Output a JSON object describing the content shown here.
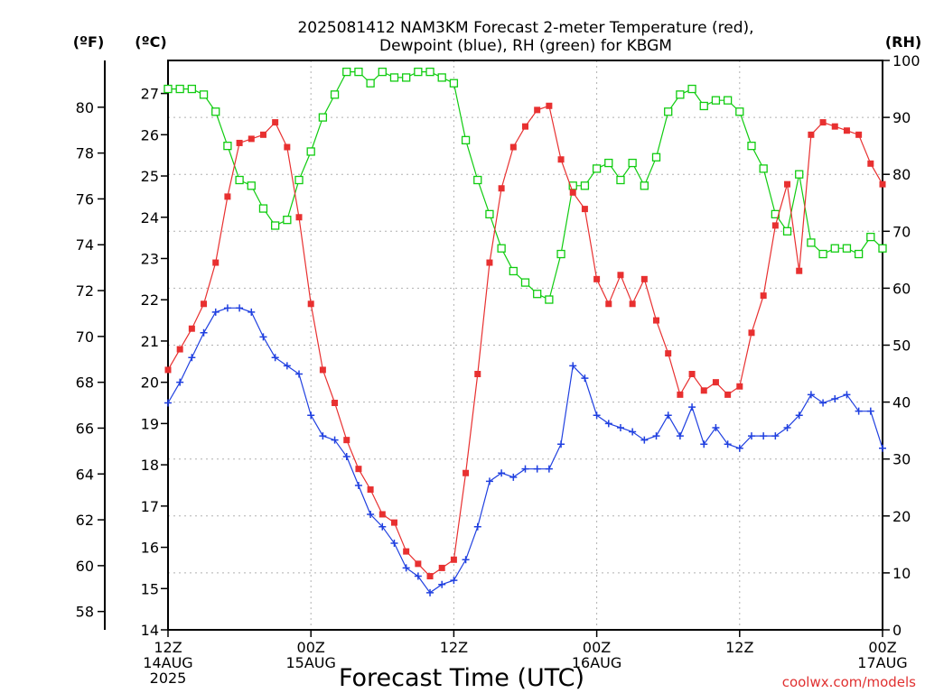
{
  "title_line1": "2025081412 NAM3KM Forecast 2-meter Temperature (red),",
  "title_line2": "Dewpoint (blue), RH (green) for KBGM",
  "unit_f": "(ºF)",
  "unit_c": "(ºC)",
  "unit_rh": "(RH)",
  "xlabel": "Forecast Time (UTC)",
  "credit": "coolwx.com/models",
  "colors": {
    "temperature": "#e83030",
    "dewpoint": "#2040e0",
    "rh": "#10cc10",
    "grid": "#b0b0b0",
    "credit": "#e03030"
  },
  "chart_data": {
    "type": "line",
    "title": "2025081412 NAM3KM Forecast 2-meter Temperature (red), Dewpoint (blue), RH (green) for KBGM",
    "xlabel": "Forecast Time (UTC)",
    "xlim_hours": [
      0,
      60
    ],
    "x_ticks": [
      {
        "hour": 0,
        "lines": [
          "12Z",
          "14AUG",
          "2025"
        ]
      },
      {
        "hour": 12,
        "lines": [
          "00Z",
          "15AUG"
        ]
      },
      {
        "hour": 24,
        "lines": [
          "12Z"
        ]
      },
      {
        "hour": 36,
        "lines": [
          "00Z",
          "16AUG"
        ]
      },
      {
        "hour": 48,
        "lines": [
          "12Z"
        ]
      },
      {
        "hour": 60,
        "lines": [
          "00Z",
          "17AUG"
        ]
      }
    ],
    "y_left_celsius": {
      "label": "(ºC)",
      "range": [
        14,
        27.8
      ],
      "ticks": [
        14,
        15,
        16,
        17,
        18,
        19,
        20,
        21,
        22,
        23,
        24,
        25,
        26,
        27
      ]
    },
    "y_left_fahrenheit": {
      "label": "(ºF)",
      "ticks": [
        58,
        60,
        62,
        64,
        66,
        68,
        70,
        72,
        74,
        76,
        78,
        80
      ]
    },
    "y_right_rh": {
      "label": "(RH)",
      "range": [
        0,
        100
      ],
      "ticks": [
        0,
        10,
        20,
        30,
        40,
        50,
        60,
        70,
        80,
        90,
        100
      ]
    },
    "grid": true,
    "series": [
      {
        "name": "Temperature",
        "unit": "C",
        "values": [
          20.3,
          20.8,
          21.3,
          21.9,
          22.9,
          24.5,
          25.8,
          25.9,
          26.0,
          26.3,
          25.7,
          24.0,
          21.9,
          20.3,
          19.5,
          18.6,
          17.9,
          17.4,
          16.8,
          16.6,
          15.9,
          15.6,
          15.3,
          15.5,
          15.7,
          17.8,
          20.2,
          22.9,
          24.7,
          25.7,
          26.2,
          26.6,
          26.7,
          25.4,
          24.6,
          24.2,
          22.5,
          21.9,
          22.6,
          21.9,
          22.5,
          21.5,
          20.7,
          19.7,
          20.2,
          19.8,
          20.0,
          19.7,
          19.9,
          21.2,
          22.1,
          23.8,
          24.8,
          22.7,
          26.0,
          26.3,
          26.2,
          26.1,
          26.0,
          25.3,
          24.8
        ]
      },
      {
        "name": "Dewpoint",
        "unit": "C",
        "values": [
          19.5,
          20.0,
          20.6,
          21.2,
          21.7,
          21.8,
          21.8,
          21.7,
          21.1,
          20.6,
          20.4,
          20.2,
          19.2,
          18.7,
          18.6,
          18.2,
          17.5,
          16.8,
          16.5,
          16.1,
          15.5,
          15.3,
          14.9,
          15.1,
          15.2,
          15.7,
          16.5,
          17.6,
          17.8,
          17.7,
          17.9,
          17.9,
          17.9,
          18.5,
          20.4,
          20.1,
          19.2,
          19.0,
          18.9,
          18.8,
          18.6,
          18.7,
          19.2,
          18.7,
          19.4,
          18.5,
          18.9,
          18.5,
          18.4,
          18.7,
          18.7,
          18.7,
          18.9,
          19.2,
          19.7,
          19.5,
          19.6,
          19.7,
          19.3,
          19.3,
          18.4
        ]
      },
      {
        "name": "RH",
        "unit": "%",
        "values": [
          95,
          95,
          95,
          94,
          91,
          85,
          79,
          78,
          74,
          71,
          72,
          79,
          84,
          90,
          94,
          98,
          98,
          96,
          98,
          97,
          97,
          98,
          98,
          97,
          96,
          86,
          79,
          73,
          67,
          63,
          61,
          59,
          58,
          66,
          78,
          78,
          81,
          82,
          79,
          82,
          78,
          83,
          91,
          94,
          95,
          92,
          93,
          93,
          91,
          85,
          81,
          73,
          70,
          80,
          68,
          66,
          67,
          67,
          66,
          69,
          67
        ]
      }
    ]
  }
}
